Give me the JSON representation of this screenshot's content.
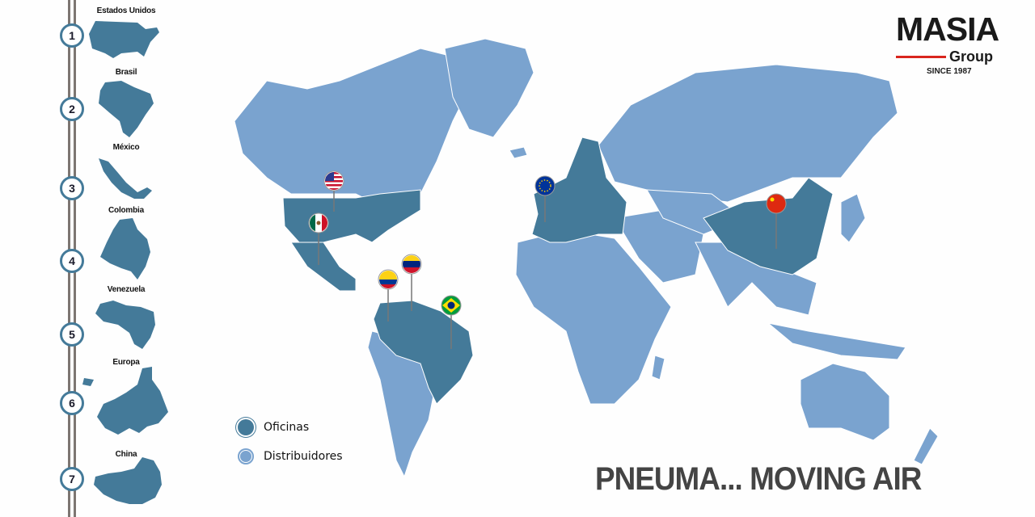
{
  "colors": {
    "offices": "#447a99",
    "distributors": "#7aa3cf",
    "rail": "#7d7672",
    "logo_accent": "#d9251d"
  },
  "sidebar": {
    "items": [
      {
        "number": "1",
        "label": "Estados Unidos"
      },
      {
        "number": "2",
        "label": "Brasil"
      },
      {
        "number": "3",
        "label": "México"
      },
      {
        "number": "4",
        "label": "Colombia"
      },
      {
        "number": "5",
        "label": "Venezuela"
      },
      {
        "number": "6",
        "label": "Europa"
      },
      {
        "number": "7",
        "label": "China"
      }
    ]
  },
  "logo": {
    "name": "MASIA",
    "sub": "Group",
    "since": "SINCE 1987"
  },
  "legend": [
    {
      "label": "Oficinas",
      "color": "#447a99"
    },
    {
      "label": "Distribuidores",
      "color": "#7aa3cf"
    }
  ],
  "pins": [
    {
      "name": "united-states-flag-icon"
    },
    {
      "name": "mexico-flag-icon"
    },
    {
      "name": "colombia-flag-icon"
    },
    {
      "name": "venezuela-flag-icon"
    },
    {
      "name": "brazil-flag-icon"
    },
    {
      "name": "european-union-flag-icon"
    },
    {
      "name": "china-flag-icon"
    }
  ],
  "slogan": "PNEUMA... MOVING AIR"
}
